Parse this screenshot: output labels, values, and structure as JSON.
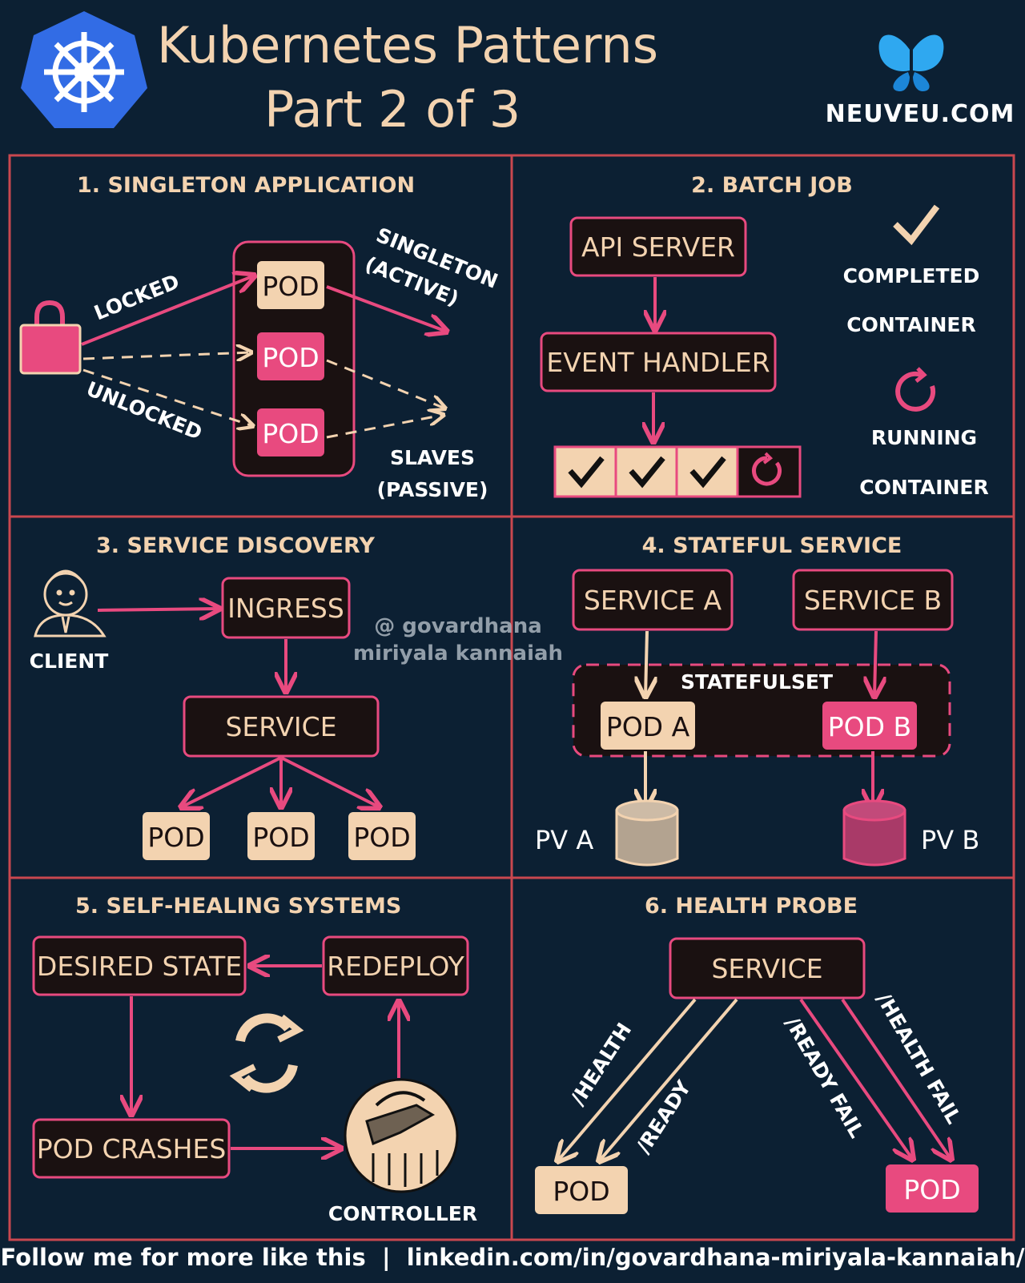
{
  "header": {
    "title_line1": "Kubernetes Patterns",
    "title_line2": "Part 2 of 3",
    "brand": "NEUVEU.COM",
    "kubernetes_logo_icon": "kubernetes-helm-icon",
    "butterfly_icon": "butterfly-icon"
  },
  "watermark": {
    "line1": "@ govardhana",
    "line2": "miriyala kannaiah"
  },
  "sections": {
    "singleton": {
      "title": "1. SINGLETON APPLICATION",
      "pods": [
        "POD",
        "POD",
        "POD"
      ],
      "locked": "LOCKED",
      "unlocked": "UNLOCKED",
      "active_line1": "SINGLETON",
      "active_line2": "(ACTIVE)",
      "passive_line1": "SLAVES",
      "passive_line2": "(PASSIVE)"
    },
    "batch": {
      "title": "2. BATCH JOB",
      "api_server": "API SERVER",
      "event_handler": "EVENT HANDLER",
      "completed_line1": "COMPLETED",
      "completed_line2": "CONTAINER",
      "running_line1": "RUNNING",
      "running_line2": "CONTAINER"
    },
    "discovery": {
      "title": "3. SERVICE DISCOVERY",
      "client": "CLIENT",
      "ingress": "INGRESS",
      "service": "SERVICE",
      "pods": [
        "POD",
        "POD",
        "POD"
      ]
    },
    "stateful": {
      "title": "4. STATEFUL SERVICE",
      "service_a": "SERVICE A",
      "service_b": "SERVICE B",
      "statefulset": "STATEFULSET",
      "pod_a": "POD A",
      "pod_b": "POD B",
      "pv_a": "PV A",
      "pv_b": "PV B"
    },
    "selfheal": {
      "title": "5. SELF-HEALING SYSTEMS",
      "desired_state": "DESIRED STATE",
      "redeploy": "REDEPLOY",
      "pod_crashes": "POD CRASHES",
      "controller": "CONTROLLER"
    },
    "health": {
      "title": "6. HEALTH PROBE",
      "service": "SERVICE",
      "health": "/HEALTH",
      "ready": "/READY",
      "ready_fail": "/READY FAIL",
      "health_fail": "/HEALTH FAIL",
      "pod_ok": "POD",
      "pod_fail": "POD"
    }
  },
  "footer": {
    "text": "Follow me for more like this  |  linkedin.com/in/govardhana-miriyala-kannaiah/"
  },
  "colors": {
    "background": "#0c2033",
    "cream": "#f3d3b0",
    "pink": "#e84a7f",
    "dark_box": "#1a1111",
    "grid_line": "#c9474f",
    "kubernetes_blue": "#326ce5",
    "butterfly_blue": "#2fa8f0"
  }
}
